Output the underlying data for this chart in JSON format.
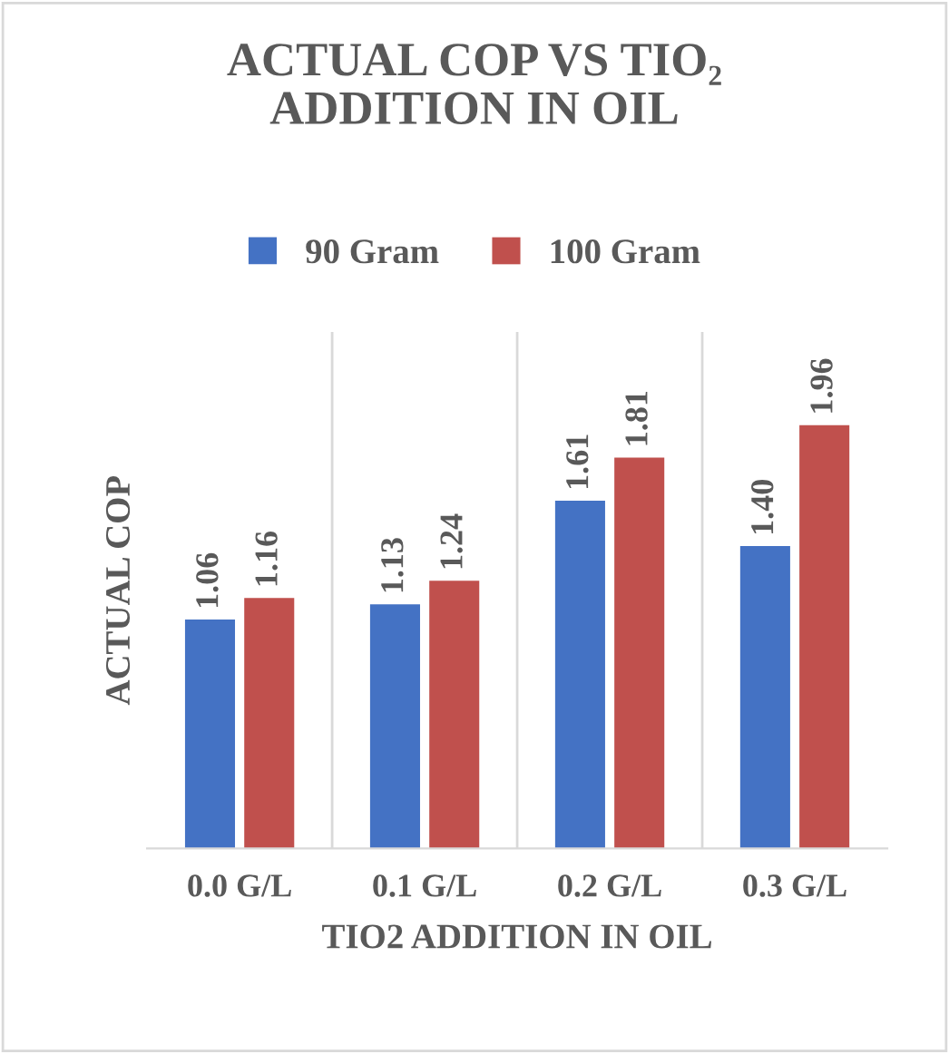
{
  "chart_data": {
    "type": "bar",
    "title": "ACTUAL COP VS TIO₂\nADDITION IN OIL",
    "xlabel": "TIO2 ADDITION IN OIL",
    "ylabel": "ACTUAL COP",
    "categories": [
      "0.0 G/L",
      "0.1 G/L",
      "0.2 G/L",
      "0.3 G/L"
    ],
    "series": [
      {
        "name": "90 Gram",
        "color": "#4472c4",
        "values": [
          1.06,
          1.13,
          1.61,
          1.4
        ],
        "value_labels": [
          "1.06",
          "1.13",
          "1.61",
          "1.40"
        ]
      },
      {
        "name": "100 Gram",
        "color": "#c0504d",
        "values": [
          1.16,
          1.24,
          1.81,
          1.96
        ],
        "value_labels": [
          "1.16",
          "1.24",
          "1.81",
          "1.96"
        ]
      }
    ],
    "legend": "top",
    "grid": "x",
    "tick_labels": "x"
  }
}
